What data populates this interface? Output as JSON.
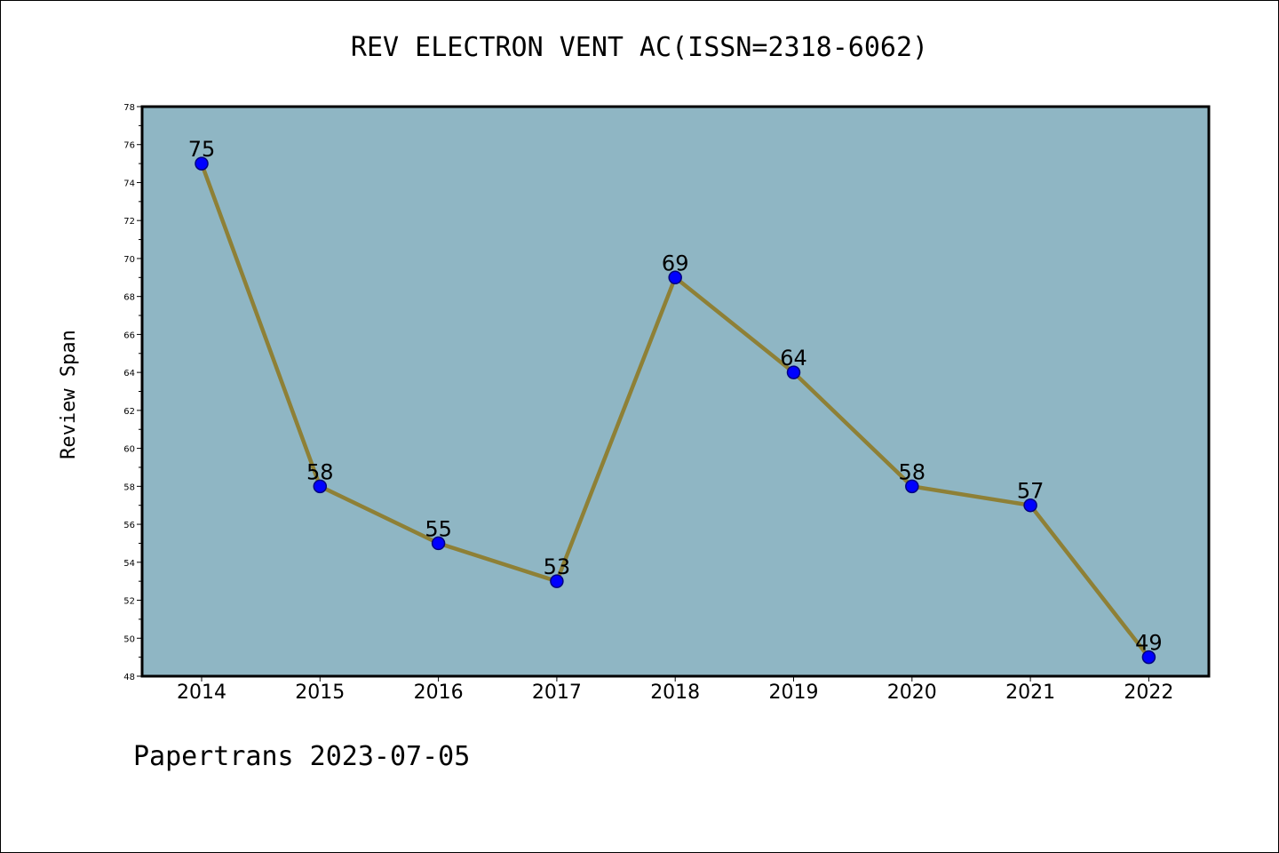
{
  "chart_data": {
    "type": "line",
    "title": "REV ELECTRON VENT AC(ISSN=2318-6062)",
    "xlabel": "",
    "ylabel": "Review Span",
    "categories": [
      "2014",
      "2015",
      "2016",
      "2017",
      "2018",
      "2019",
      "2020",
      "2021",
      "2022"
    ],
    "values": [
      75,
      58,
      55,
      53,
      69,
      64,
      58,
      57,
      49
    ],
    "ylim": [
      48,
      78
    ],
    "yticks": [
      48,
      50,
      52,
      54,
      56,
      58,
      60,
      62,
      64,
      66,
      68,
      70,
      72,
      74,
      76,
      78
    ],
    "grid": false,
    "legend": "none",
    "colors": {
      "plot_background": "#8fb6c4",
      "line": "#8e8036",
      "marker_fill": "#0000ff",
      "marker_edge": "#000080"
    }
  },
  "footer": "Papertrans 2023-07-05"
}
